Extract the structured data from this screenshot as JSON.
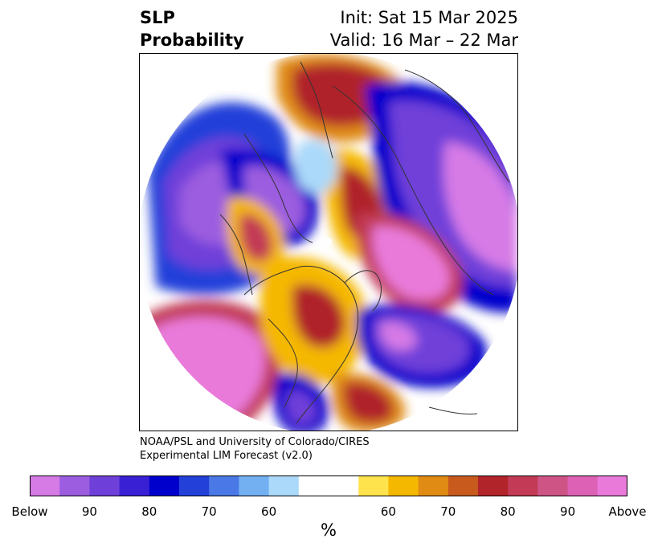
{
  "title": {
    "left_line1": "SLP",
    "left_line2": "Probability",
    "right_line1": "Init: Sat 15 Mar 2025",
    "right_line2": "Valid: 16 Mar – 22 Mar"
  },
  "credit": {
    "line1": "NOAA/PSL and University of Colorado/CIRES",
    "line2": "Experimental LIM Forecast (v2.0)"
  },
  "colorbar": {
    "colors": [
      "#d67ae6",
      "#9c5de0",
      "#6f3fd9",
      "#3a20d4",
      "#0000cc",
      "#2341d9",
      "#4a78e6",
      "#73b0f2",
      "#aad9fa",
      "#ffffff",
      "#ffffff",
      "#ffe34d",
      "#f5b800",
      "#e08c14",
      "#c85a1e",
      "#b0242a",
      "#c23a55",
      "#cf5486",
      "#dd62b6",
      "#e97ada"
    ],
    "tick_labels": [
      "Below",
      "90",
      "80",
      "70",
      "60",
      "60",
      "70",
      "80",
      "90",
      "Above"
    ],
    "unit": "%"
  },
  "map": {
    "projection": "polar stereographic, Northern Hemisphere",
    "colors": {
      "strong_below": "#d67ae6",
      "below": "#0000cc",
      "weak_below": "#aad9fa",
      "weak_above": "#ffe34d",
      "above": "#b0242a",
      "strong_above": "#e97ada"
    }
  }
}
